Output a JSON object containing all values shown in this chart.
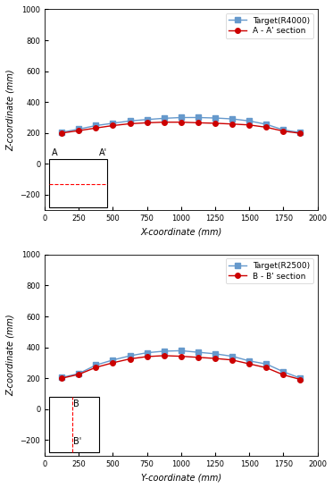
{
  "top": {
    "xlabel": "X-coordinate (mm)",
    "ylabel": "Z-coordinate (mm)",
    "xlim": [
      0,
      2000
    ],
    "ylim": [
      -300,
      1000
    ],
    "yticks": [
      -200,
      0,
      200,
      400,
      600,
      800,
      1000
    ],
    "xticks": [
      0,
      250,
      500,
      750,
      1000,
      1250,
      1500,
      1750,
      2000
    ],
    "legend1": "Target(R4000)",
    "legend2": "A - A' section",
    "target_x": [
      125,
      250,
      375,
      500,
      625,
      750,
      875,
      1000,
      1125,
      1250,
      1375,
      1500,
      1625,
      1750,
      1875
    ],
    "target_z": [
      205,
      225,
      248,
      263,
      278,
      287,
      295,
      300,
      300,
      297,
      291,
      278,
      256,
      220,
      203
    ],
    "section_x": [
      125,
      250,
      375,
      500,
      625,
      750,
      875,
      1000,
      1125,
      1250,
      1375,
      1500,
      1625,
      1750,
      1875
    ],
    "section_z": [
      200,
      215,
      232,
      248,
      260,
      266,
      270,
      270,
      266,
      263,
      258,
      252,
      237,
      212,
      198
    ],
    "label_A": "A",
    "label_Aprime": "A'"
  },
  "bottom": {
    "xlabel": "Y-coordinate (mm)",
    "ylabel": "Z-coordinate (mm)",
    "xlim": [
      0,
      2000
    ],
    "ylim": [
      -300,
      1000
    ],
    "yticks": [
      -200,
      0,
      200,
      400,
      600,
      800,
      1000
    ],
    "xticks": [
      0,
      250,
      500,
      750,
      1000,
      1250,
      1500,
      1750,
      2000
    ],
    "legend1": "Target(R2500)",
    "legend2": "B - B' section",
    "target_x": [
      125,
      250,
      375,
      500,
      625,
      750,
      875,
      1000,
      1125,
      1250,
      1375,
      1500,
      1625,
      1750,
      1875
    ],
    "target_z": [
      205,
      230,
      285,
      318,
      345,
      365,
      375,
      378,
      368,
      358,
      342,
      312,
      292,
      242,
      200
    ],
    "section_x": [
      125,
      250,
      375,
      500,
      625,
      750,
      875,
      1000,
      1125,
      1250,
      1375,
      1500,
      1625,
      1750,
      1875
    ],
    "section_z": [
      200,
      225,
      270,
      300,
      325,
      340,
      346,
      342,
      335,
      328,
      318,
      293,
      268,
      222,
      192
    ],
    "label_B": "B",
    "label_Bprime": "B'"
  },
  "blue_color": "#6699CC",
  "red_color": "#CC0000",
  "marker_blue": "s",
  "marker_red": "o",
  "markersize": 4,
  "linewidth": 1.0,
  "fontsize_label": 7,
  "fontsize_tick": 6,
  "fontsize_legend": 6.5
}
